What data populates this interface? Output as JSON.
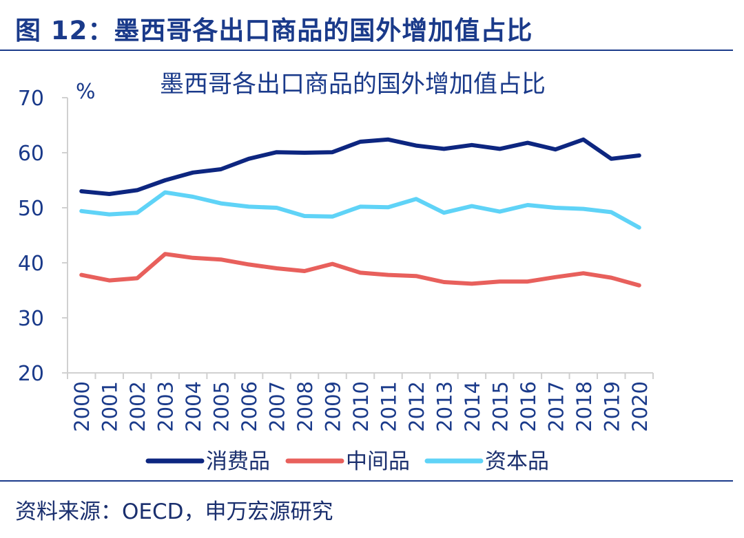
{
  "figure_title": "图 12：墨西哥各出口商品的国外增加值占比",
  "source": "资料来源：OECD，申万宏源研究",
  "colors": {
    "title": "#1a3a8a",
    "axis": "#1a3a8a"
  },
  "chart_data": {
    "type": "line",
    "title": "墨西哥各出口商品的国外增加值占比",
    "ylabel": "%",
    "xlabel": "",
    "ylim": [
      20,
      70
    ],
    "yticks": [
      20,
      30,
      40,
      50,
      60,
      70
    ],
    "grid": false,
    "legend_position": "bottom",
    "categories": [
      "2000",
      "2001",
      "2002",
      "2003",
      "2004",
      "2005",
      "2006",
      "2007",
      "2008",
      "2009",
      "2010",
      "2011",
      "2012",
      "2013",
      "2014",
      "2015",
      "2016",
      "2017",
      "2018",
      "2019",
      "2020"
    ],
    "series": [
      {
        "name": "消费品",
        "color": "#0d2680",
        "values": [
          53.0,
          52.5,
          53.2,
          55.0,
          56.4,
          57.0,
          58.9,
          60.1,
          60.0,
          60.1,
          62.0,
          62.4,
          61.3,
          60.7,
          61.4,
          60.7,
          61.8,
          60.6,
          62.4,
          58.9,
          59.5
        ]
      },
      {
        "name": "中间品",
        "color": "#e8605c",
        "values": [
          37.8,
          36.8,
          37.2,
          41.6,
          40.9,
          40.6,
          39.7,
          39.0,
          38.5,
          39.8,
          38.2,
          37.8,
          37.6,
          36.5,
          36.2,
          36.6,
          36.6,
          37.4,
          38.1,
          37.3,
          35.9
        ]
      },
      {
        "name": "资本品",
        "color": "#5fd3f7",
        "values": [
          49.4,
          48.8,
          49.1,
          52.8,
          52.0,
          50.8,
          50.2,
          50.0,
          48.5,
          48.4,
          50.2,
          50.1,
          51.6,
          49.1,
          50.3,
          49.3,
          50.5,
          50.0,
          49.8,
          49.2,
          46.4
        ]
      }
    ]
  }
}
